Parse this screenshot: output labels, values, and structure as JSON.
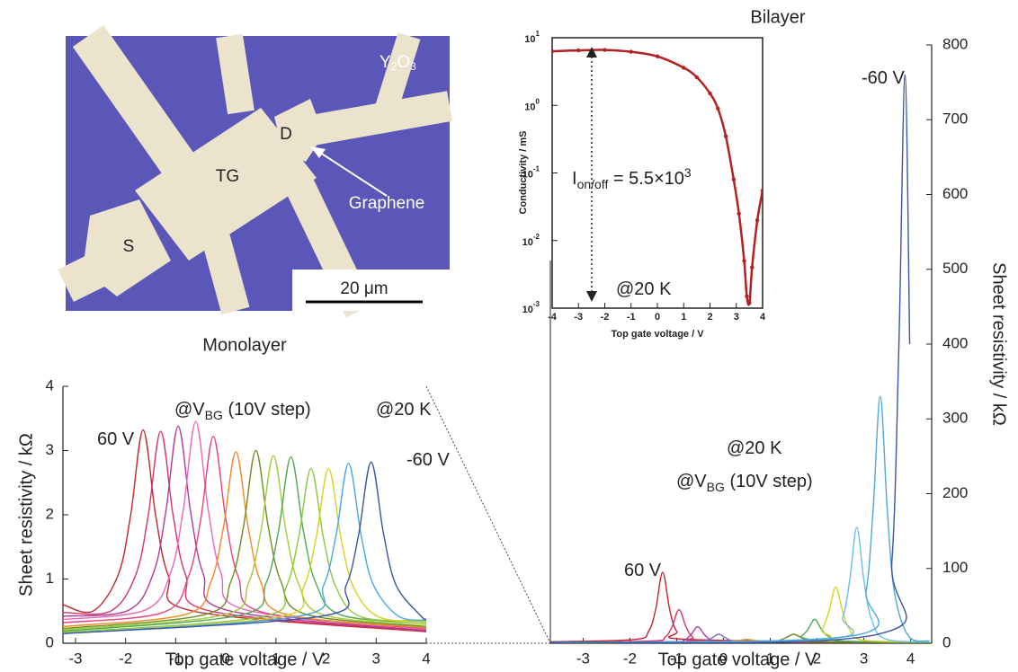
{
  "micrograph": {
    "oxide": {
      "text": "Y",
      "sub": "2",
      "tail": "O",
      "sub2": "3"
    },
    "drain": "D",
    "top_gate": "TG",
    "source": "S",
    "graphene": "Graphene",
    "scale_bar": "20 μm"
  },
  "chart_data": [
    {
      "type": "line",
      "title": "Monolayer",
      "x_label": "Top gate voltage / V",
      "y_label": "Sheet resistivity / kΩ",
      "xlim": [
        -3.25,
        4
      ],
      "xticks": [
        -3,
        -2,
        -1,
        0,
        1,
        2,
        3,
        4
      ],
      "ylim": [
        0,
        4
      ],
      "yticks": [
        0,
        1,
        2,
        3,
        4
      ],
      "annotations": [
        {
          "text": "60 V"
        },
        {
          "text": "@V",
          "sub": "BG",
          "tail": " (10V step)"
        },
        {
          "text": "@20 K"
        },
        {
          "text": "-60 V"
        }
      ],
      "series": [
        {
          "color": "#c0272d",
          "x": [
            -3.25,
            -2.65,
            -2.15,
            -1.9,
            -1.65,
            -1.4,
            -1.15,
            -0.65,
            4
          ],
          "values": [
            0.6,
            0.5,
            1.06,
            1.99,
            3.32,
            1.99,
            1.06,
            0.5,
            0.18
          ]
        },
        {
          "color": "#d6336c",
          "x": [
            -3.25,
            -2.3,
            -1.8,
            -1.55,
            -1.3,
            -1.05,
            -0.8,
            -0.3,
            4
          ],
          "values": [
            0.48,
            0.5,
            1.06,
            1.98,
            3.3,
            1.98,
            1.06,
            0.5,
            0.19
          ]
        },
        {
          "color": "#b03a9c",
          "x": [
            -3.25,
            -1.95,
            -1.45,
            -1.2,
            -0.95,
            -0.7,
            -0.45,
            0.05,
            4
          ],
          "values": [
            0.42,
            0.51,
            1.08,
            2.03,
            3.38,
            2.03,
            1.08,
            0.51,
            0.2
          ]
        },
        {
          "color": "#e768b8",
          "x": [
            -3.25,
            -1.6,
            -1.1,
            -0.85,
            -0.6,
            -0.35,
            -0.1,
            0.4,
            4
          ],
          "values": [
            0.37,
            0.52,
            1.1,
            2.07,
            3.45,
            2.07,
            1.1,
            0.52,
            0.22
          ]
        },
        {
          "color": "#e8417a",
          "x": [
            -3.25,
            -1.25,
            -0.75,
            -0.5,
            -0.25,
            0,
            0.25,
            0.75,
            4
          ],
          "values": [
            0.32,
            0.48,
            1.03,
            1.93,
            3.22,
            1.93,
            1.03,
            0.48,
            0.23
          ]
        },
        {
          "color": "#f08a24",
          "x": [
            -3.25,
            -0.8,
            -0.3,
            -0.05,
            0.2,
            0.45,
            0.7,
            1.2,
            4
          ],
          "values": [
            0.26,
            0.45,
            0.95,
            1.79,
            2.98,
            1.79,
            0.95,
            0.45,
            0.24
          ]
        },
        {
          "color": "#6b8e23",
          "x": [
            -3.25,
            -0.4,
            0.1,
            0.35,
            0.6,
            0.85,
            1.1,
            1.6,
            4
          ],
          "values": [
            0.23,
            0.45,
            0.96,
            1.8,
            3.0,
            1.8,
            0.96,
            0.45,
            0.26
          ]
        },
        {
          "color": "#a6c93b",
          "x": [
            -3.25,
            -0.05,
            0.45,
            0.7,
            0.95,
            1.2,
            1.45,
            1.95,
            4
          ],
          "values": [
            0.21,
            0.44,
            0.93,
            1.75,
            2.92,
            1.75,
            0.93,
            0.44,
            0.29
          ]
        },
        {
          "color": "#4fa84f",
          "x": [
            -3.25,
            0.3,
            0.8,
            1.05,
            1.3,
            1.55,
            1.8,
            2.3,
            4
          ],
          "values": [
            0.19,
            0.44,
            0.93,
            1.74,
            2.9,
            1.74,
            0.93,
            0.44,
            0.32
          ]
        },
        {
          "color": "#8cc63f",
          "x": [
            -3.25,
            0.7,
            1.2,
            1.45,
            1.7,
            1.95,
            2.2,
            2.7,
            4
          ],
          "values": [
            0.17,
            0.41,
            0.87,
            1.63,
            2.72,
            1.63,
            0.87,
            0.41,
            0.35
          ]
        },
        {
          "color": "#d4d41e",
          "x": [
            -3.25,
            1.05,
            1.55,
            1.8,
            2.05,
            2.3,
            2.55,
            3.05,
            4
          ],
          "values": [
            0.15,
            0.41,
            0.87,
            1.63,
            2.72,
            1.63,
            0.87,
            0.41,
            0.33
          ]
        },
        {
          "color": "#4aa8e0",
          "x": [
            -3.25,
            1.45,
            1.95,
            2.2,
            2.45,
            2.7,
            2.95,
            3.45,
            4
          ],
          "values": [
            0.15,
            0.42,
            0.9,
            1.68,
            2.8,
            1.68,
            0.9,
            0.42,
            0.36
          ]
        },
        {
          "color": "#3a55a5",
          "x": [
            -3.25,
            1.9,
            2.4,
            2.65,
            2.9,
            3.15,
            3.4,
            3.9,
            4
          ],
          "values": [
            0.15,
            0.42,
            0.9,
            1.69,
            2.82,
            1.69,
            0.9,
            0.42,
            0.38
          ]
        }
      ]
    },
    {
      "type": "line",
      "title": "Bilayer",
      "x_label": "Top gate voltage / V",
      "y_label": "Sheet resistivity / kΩ",
      "xlim": [
        -3.7,
        4.45
      ],
      "xticks": [
        -3,
        -2,
        -1,
        0,
        1,
        2,
        3,
        4
      ],
      "ylim": [
        0,
        800
      ],
      "yticks": [
        0,
        100,
        200,
        300,
        400,
        500,
        600,
        700,
        800
      ],
      "annotations": [
        {
          "text": "-60 V"
        },
        {
          "text": "@20 K"
        },
        {
          "text": "@V",
          "sub": "BG",
          "tail": " (10V step)"
        },
        {
          "text": "60 V"
        }
      ],
      "series": [
        {
          "color": "#c0272d",
          "x": [
            -3.7,
            -1.9,
            -1.6,
            -1.45,
            -1.3,
            -1.15,
            -1,
            -0.7,
            4.4
          ],
          "values": [
            2,
            5,
            16,
            45,
            95,
            45,
            16,
            5,
            1
          ]
        },
        {
          "color": "#d6336c",
          "x": [
            -3.7,
            -1.55,
            -1.25,
            -1.1,
            -0.95,
            -0.8,
            -0.65,
            -0.35,
            4.4
          ],
          "values": [
            1,
            3,
            8,
            22,
            45,
            22,
            8,
            3,
            1
          ]
        },
        {
          "color": "#b03a9c",
          "x": [
            -3.7,
            -1.15,
            -0.85,
            -0.7,
            -0.55,
            -0.4,
            -0.25,
            0.05,
            4.4
          ],
          "values": [
            1,
            2,
            4,
            11,
            22,
            11,
            4,
            2,
            1
          ]
        },
        {
          "color": "#7a6fc0",
          "x": [
            -3.7,
            -0.7,
            -0.4,
            -0.25,
            -0.1,
            0.05,
            0.2,
            0.5,
            4.4
          ],
          "values": [
            1,
            2,
            3,
            7,
            12,
            7,
            3,
            2,
            1
          ]
        },
        {
          "color": "#f08a24",
          "x": [
            -3.7,
            -0.1,
            0.2,
            0.35,
            0.5,
            0.65,
            0.8,
            1.1,
            4.4
          ],
          "values": [
            1,
            2,
            3,
            4,
            5,
            4,
            3,
            2,
            1
          ]
        },
        {
          "color": "#6b8e23",
          "x": [
            -3.7,
            0.9,
            1.2,
            1.35,
            1.5,
            1.65,
            1.8,
            2.1,
            4.4
          ],
          "values": [
            1,
            2,
            4,
            8,
            12,
            8,
            4,
            2,
            1
          ]
        },
        {
          "color": "#4fa84f",
          "x": [
            -3.7,
            1.35,
            1.65,
            1.8,
            1.95,
            2.1,
            2.25,
            2.55,
            4.4
          ],
          "values": [
            1,
            3,
            9,
            18,
            32,
            18,
            9,
            3,
            1
          ]
        },
        {
          "color": "#d4d41e",
          "x": [
            -3.7,
            1.8,
            2.1,
            2.25,
            2.4,
            2.55,
            2.7,
            3,
            4.4
          ],
          "values": [
            1,
            4,
            18,
            42,
            75,
            42,
            18,
            4,
            2
          ]
        },
        {
          "color": "#6cc0ea",
          "x": [
            -3.7,
            2.25,
            2.55,
            2.7,
            2.85,
            3,
            3.15,
            3.45,
            4.4
          ],
          "values": [
            1,
            6,
            35,
            85,
            155,
            85,
            35,
            6,
            2
          ]
        },
        {
          "color": "#4aa8e0",
          "x": [
            -3.7,
            2.75,
            3.05,
            3.2,
            3.35,
            3.5,
            3.65,
            3.95,
            4.4
          ],
          "values": [
            1,
            10,
            70,
            180,
            330,
            180,
            70,
            10,
            3
          ]
        },
        {
          "color": "#3a55a5",
          "x": [
            -3.7,
            3.3,
            3.6,
            3.75,
            3.88,
            3.98
          ],
          "values": [
            1,
            12,
            110,
            400,
            760,
            400
          ]
        }
      ]
    },
    {
      "type": "line",
      "log_y": true,
      "x_label": "Top gate voltage / V",
      "y_label": "Conductivity / mS",
      "xlim": [
        -4,
        4
      ],
      "xticks": [
        -4,
        -3,
        -2,
        -1,
        0,
        1,
        2,
        3,
        4
      ],
      "ylim": [
        0.001,
        10
      ],
      "yticks": [
        {
          "value": 0.001,
          "label": "10",
          "exponent": "-3"
        },
        {
          "value": 0.01,
          "label": "10",
          "exponent": "-2"
        },
        {
          "value": 0.1,
          "label": "10",
          "exponent": "-1"
        },
        {
          "value": 1,
          "label": "10",
          "exponent": "0"
        },
        {
          "value": 10,
          "label": "10",
          "exponent": "1"
        }
      ],
      "annotations": [
        {
          "text": "I",
          "sub": "on/off",
          "tail": " = 5.5×10",
          "sup": "3"
        },
        {
          "text": "@20 K"
        }
      ],
      "series": [
        {
          "color": "#b22222",
          "x": [
            -4,
            -3,
            -2,
            -1,
            0,
            1,
            1.5,
            2,
            2.3,
            2.6,
            2.9,
            3.1,
            3.3,
            3.4,
            3.5,
            3.6,
            3.8,
            4
          ],
          "values": [
            6.3,
            6.5,
            6.6,
            6.2,
            5.3,
            3.6,
            2.6,
            1.5,
            0.9,
            0.35,
            0.08,
            0.025,
            0.005,
            0.0015,
            0.0012,
            0.004,
            0.02,
            0.055
          ]
        }
      ]
    }
  ]
}
